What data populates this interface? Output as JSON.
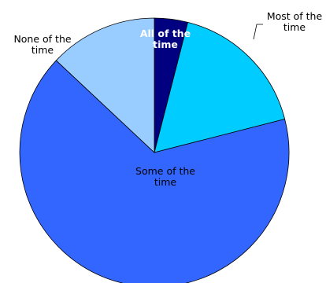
{
  "chart_data": {
    "type": "pie",
    "title": "",
    "categories": [
      "All of the time",
      "Most of the time",
      "Some of the time",
      "None of the time"
    ],
    "values": [
      4,
      17,
      66,
      13
    ],
    "colors": [
      "#000080",
      "#00ccff",
      "#3366ff",
      "#99ccff"
    ],
    "label_lines": [
      [
        "All of the",
        "time"
      ],
      [
        "Most of the",
        "time"
      ],
      [
        "Some of the",
        "time"
      ],
      [
        "None of the",
        "time"
      ]
    ],
    "start_angle_deg": 0,
    "direction": "clockwise",
    "legend": "none"
  }
}
